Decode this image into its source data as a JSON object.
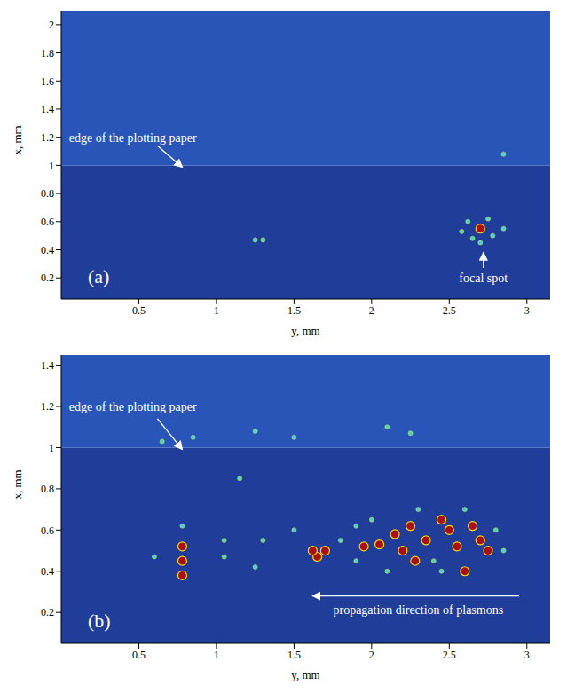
{
  "chart_data": [
    {
      "type": "scatter",
      "panel_label": "(a)",
      "x_label": "y, mm",
      "y_label": "x, mm",
      "xlim": [
        0,
        3.15
      ],
      "xticks": [
        0.5,
        1,
        1.5,
        2,
        2.5,
        3
      ],
      "ylim": [
        0.05,
        2.1
      ],
      "yticks": [
        0.2,
        0.4,
        0.6,
        0.8,
        1,
        1.2,
        1.4,
        1.6,
        1.8,
        2
      ],
      "paper_edge": 1,
      "annotations": [
        "edge of the plotting paper",
        "focal spot"
      ],
      "series": [
        {
          "color": "#a50f15",
          "marker": "circle",
          "x": [
            2.7
          ],
          "values": [
            0.55
          ]
        },
        {
          "color": "#4fd1c5",
          "marker": "circle",
          "x": [
            2.62,
            2.78,
            2.65,
            2.75,
            2.7,
            2.85,
            2.58,
            1.25,
            1.3,
            2.85
          ],
          "values": [
            0.6,
            0.5,
            0.48,
            0.62,
            0.45,
            0.55,
            0.53,
            0.47,
            0.47,
            1.08
          ]
        }
      ]
    },
    {
      "type": "scatter",
      "panel_label": "(b)",
      "x_label": "y, mm",
      "y_label": "x, mm",
      "xlim": [
        0,
        3.15
      ],
      "xticks": [
        0.5,
        1,
        1.5,
        2,
        2.5,
        3
      ],
      "ylim": [
        0.05,
        1.45
      ],
      "yticks": [
        0.2,
        0.4,
        0.6,
        0.8,
        1,
        1.2,
        1.4
      ],
      "paper_edge": 1,
      "annotations": [
        "edge of the plotting paper",
        "propagation direction of plasmons"
      ],
      "series": [
        {
          "color": "#a50f15",
          "marker": "circle",
          "x": [
            0.78,
            0.78,
            0.78,
            1.65,
            1.62,
            1.7,
            1.95,
            2.05,
            2.2,
            2.25,
            2.28,
            2.35,
            2.5,
            2.55,
            2.6,
            2.65,
            2.7,
            2.75,
            2.45,
            2.15
          ],
          "values": [
            0.45,
            0.38,
            0.52,
            0.47,
            0.5,
            0.5,
            0.52,
            0.53,
            0.5,
            0.62,
            0.45,
            0.55,
            0.6,
            0.52,
            0.4,
            0.62,
            0.55,
            0.5,
            0.65,
            0.58
          ]
        },
        {
          "color": "#4fd1c5",
          "marker": "circle",
          "x": [
            0.6,
            1.05,
            1.15,
            1.25,
            1.3,
            1.5,
            1.8,
            1.9,
            2.0,
            2.1,
            2.3,
            2.4,
            2.6,
            2.8,
            2.85,
            0.78,
            0.85,
            1.5,
            1.25,
            2.1,
            2.25,
            0.65,
            1.05,
            1.9,
            2.45
          ],
          "values": [
            0.47,
            0.47,
            0.85,
            0.42,
            0.55,
            0.6,
            0.55,
            0.45,
            0.65,
            0.4,
            0.7,
            0.45,
            0.7,
            0.6,
            0.5,
            0.62,
            1.05,
            1.05,
            1.08,
            1.1,
            1.07,
            1.03,
            0.55,
            0.62,
            0.4
          ]
        }
      ]
    }
  ]
}
